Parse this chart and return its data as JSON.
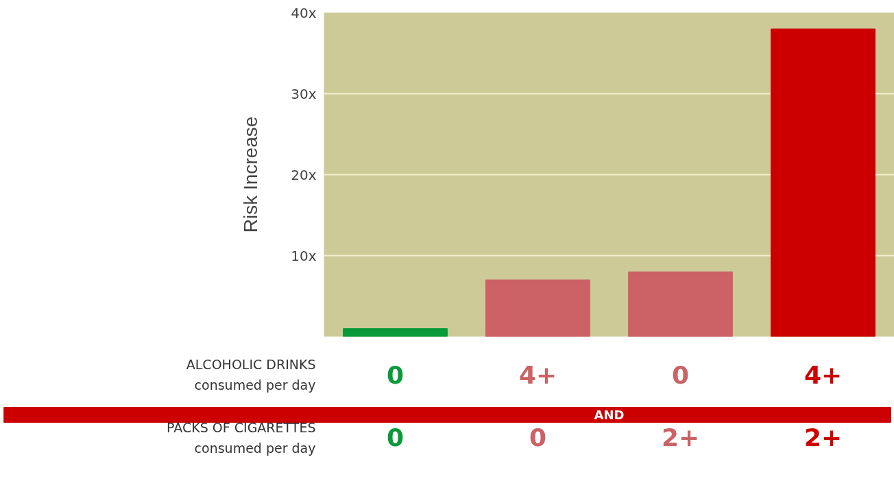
{
  "chart_data": {
    "type": "bar",
    "ylabel": "Risk Increase",
    "categories": [
      "0\n0",
      "4+\n0",
      "0\n2+",
      "4+\n2+"
    ],
    "values": [
      1,
      7,
      8,
      38
    ],
    "colors": [
      "#0a9a3a",
      "#cc6266",
      "#cc6266",
      "#cc0000"
    ],
    "ylim": [
      0,
      40
    ],
    "yticks": [
      {
        "value": 10,
        "label": "10x"
      },
      {
        "value": 20,
        "label": "20x"
      },
      {
        "value": 30,
        "label": "30x"
      },
      {
        "value": 40,
        "label": "40x"
      }
    ],
    "grid": "y",
    "annotations": [
      "ALCOHOLIC DRINKS\nconsumed per day",
      "AND",
      "PACKS OF CIGARETTES\nconsumed per day"
    ]
  }
}
